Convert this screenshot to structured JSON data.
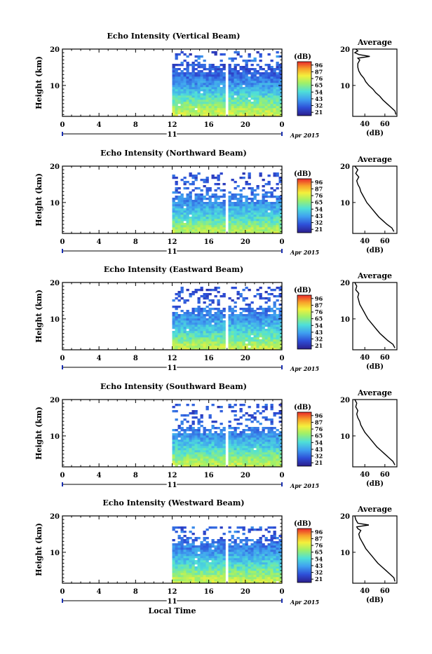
{
  "figure": {
    "date_label": "Apr 2015",
    "xlabel": "Local Time",
    "ylabel": "Height (km)",
    "day_label": "11",
    "avg_title": "Average",
    "avg_xlabel": "(dB)",
    "colorbar_title": "(dB)"
  },
  "chart_data": [
    {
      "type": "heatmap",
      "title": "Echo Intensity (Vertical Beam)",
      "xlabel": "Local Time",
      "ylabel": "Height (km)",
      "x_ticks": [
        "0",
        "4",
        "8",
        "12",
        "16",
        "20",
        "0"
      ],
      "xlim": [
        0,
        24
      ],
      "y_ticks": [
        "10",
        "20"
      ],
      "ylim": [
        1.5,
        20
      ],
      "data_start_hour": 12,
      "gap_hours": [
        17.6,
        18.0
      ],
      "echo_top_km": 16.2,
      "scatter_top_km": 19.6,
      "colorbar": {
        "ticks": [
          "96",
          "87",
          "76",
          "65",
          "54",
          "43",
          "32",
          "21"
        ],
        "range": [
          21,
          96
        ]
      },
      "average_profile": {
        "x_ticks": [
          "40",
          "60"
        ],
        "xlim": [
          28,
          72
        ],
        "ylim": [
          1.5,
          20
        ],
        "y_ticks": [
          "10",
          "20"
        ],
        "height_km": [
          2,
          3,
          4,
          5,
          6,
          7,
          8,
          9,
          10,
          11,
          12,
          13,
          14,
          15,
          16,
          17,
          17.5,
          18,
          18.5,
          19,
          19.5,
          20
        ],
        "db": [
          71,
          70,
          66,
          62,
          58,
          55,
          51,
          48,
          44,
          41,
          39,
          36,
          34,
          33,
          33,
          35,
          33,
          45,
          34,
          30,
          33,
          31
        ]
      }
    },
    {
      "type": "heatmap",
      "title": "Echo Intensity (Northward Beam)",
      "xlabel": "Local Time",
      "ylabel": "Height (km)",
      "x_ticks": [
        "0",
        "4",
        "8",
        "12",
        "16",
        "20",
        "0"
      ],
      "xlim": [
        0,
        24
      ],
      "y_ticks": [
        "10",
        "20"
      ],
      "ylim": [
        1.5,
        20
      ],
      "data_start_hour": 12,
      "gap_hours": [
        17.6,
        18.0
      ],
      "echo_top_km": 12.5,
      "scatter_top_km": 18.6,
      "colorbar": {
        "ticks": [
          "96",
          "87",
          "76",
          "65",
          "54",
          "43",
          "32",
          "21"
        ],
        "range": [
          21,
          96
        ]
      },
      "average_profile": {
        "x_ticks": [
          "40",
          "60"
        ],
        "xlim": [
          28,
          72
        ],
        "ylim": [
          1.5,
          20
        ],
        "y_ticks": [
          "10",
          "20"
        ],
        "height_km": [
          2,
          3,
          4,
          5,
          6,
          7,
          8,
          9,
          10,
          11,
          12,
          13,
          14,
          15,
          16,
          17,
          18,
          19,
          20
        ],
        "db": [
          69,
          67,
          62,
          58,
          54,
          51,
          48,
          45,
          42,
          40,
          38,
          36,
          35,
          33,
          32,
          34,
          31,
          33,
          30
        ]
      }
    },
    {
      "type": "heatmap",
      "title": "Echo Intensity (Eastward Beam)",
      "xlabel": "Local Time",
      "ylabel": "Height (km)",
      "x_ticks": [
        "0",
        "4",
        "8",
        "12",
        "16",
        "20",
        "0"
      ],
      "xlim": [
        0,
        24
      ],
      "y_ticks": [
        "10",
        "20"
      ],
      "ylim": [
        1.5,
        20
      ],
      "data_start_hour": 12,
      "gap_hours": [
        17.6,
        18.0
      ],
      "echo_top_km": 13.5,
      "scatter_top_km": 19.2,
      "colorbar": {
        "ticks": [
          "96",
          "87",
          "76",
          "65",
          "54",
          "43",
          "32",
          "21"
        ],
        "range": [
          21,
          96
        ]
      },
      "average_profile": {
        "x_ticks": [
          "40",
          "60"
        ],
        "xlim": [
          28,
          72
        ],
        "ylim": [
          1.5,
          20
        ],
        "y_ticks": [
          "10",
          "20"
        ],
        "height_km": [
          2,
          3,
          4,
          5,
          6,
          7,
          8,
          9,
          10,
          11,
          12,
          13,
          14,
          15,
          16,
          17,
          18,
          19,
          20
        ],
        "db": [
          70,
          68,
          63,
          59,
          55,
          52,
          49,
          46,
          43,
          41,
          39,
          37,
          35,
          34,
          33,
          34,
          31,
          32,
          30
        ]
      }
    },
    {
      "type": "heatmap",
      "title": "Echo Intensity (Southward Beam)",
      "xlabel": "Local Time",
      "ylabel": "Height (km)",
      "x_ticks": [
        "0",
        "4",
        "8",
        "12",
        "16",
        "20",
        "0"
      ],
      "xlim": [
        0,
        24
      ],
      "y_ticks": [
        "10",
        "20"
      ],
      "ylim": [
        1.5,
        20
      ],
      "data_start_hour": 12,
      "gap_hours": [
        17.6,
        18.0
      ],
      "echo_top_km": 12.8,
      "scatter_top_km": 19.4,
      "colorbar": {
        "ticks": [
          "96",
          "87",
          "76",
          "65",
          "54",
          "43",
          "32",
          "21"
        ],
        "range": [
          21,
          96
        ]
      },
      "average_profile": {
        "x_ticks": [
          "40",
          "60"
        ],
        "xlim": [
          28,
          72
        ],
        "ylim": [
          1.5,
          20
        ],
        "y_ticks": [
          "10",
          "20"
        ],
        "height_km": [
          2,
          3,
          4,
          5,
          6,
          7,
          8,
          9,
          10,
          11,
          12,
          13,
          14,
          15,
          16,
          17,
          18,
          19,
          20
        ],
        "db": [
          70,
          68,
          64,
          60,
          56,
          52,
          49,
          46,
          43,
          40,
          38,
          36,
          35,
          33,
          32,
          33,
          31,
          32,
          30
        ]
      }
    },
    {
      "type": "heatmap",
      "title": "Echo Intensity (Westward Beam)",
      "xlabel": "Local Time",
      "ylabel": "Height (km)",
      "x_ticks": [
        "0",
        "4",
        "8",
        "12",
        "16",
        "20",
        "0"
      ],
      "xlim": [
        0,
        24
      ],
      "y_ticks": [
        "10",
        "20"
      ],
      "ylim": [
        1.5,
        20
      ],
      "data_start_hour": 12,
      "gap_hours": [
        17.6,
        18.0
      ],
      "echo_top_km": 14.2,
      "scatter_top_km": 17.6,
      "colorbar": {
        "ticks": [
          "96",
          "87",
          "76",
          "65",
          "54",
          "43",
          "32",
          "21"
        ],
        "range": [
          21,
          96
        ]
      },
      "average_profile": {
        "x_ticks": [
          "40",
          "60"
        ],
        "xlim": [
          28,
          72
        ],
        "ylim": [
          1.5,
          20
        ],
        "y_ticks": [
          "10",
          "20"
        ],
        "height_km": [
          2,
          3,
          4,
          5,
          6,
          7,
          8,
          9,
          10,
          11,
          12,
          13,
          14,
          15,
          16,
          16.5,
          17,
          17.5,
          18,
          19,
          20
        ],
        "db": [
          70,
          69,
          65,
          61,
          57,
          53,
          50,
          47,
          44,
          41,
          39,
          37,
          35,
          34,
          36,
          33,
          32,
          44,
          33,
          31,
          30
        ]
      }
    }
  ]
}
